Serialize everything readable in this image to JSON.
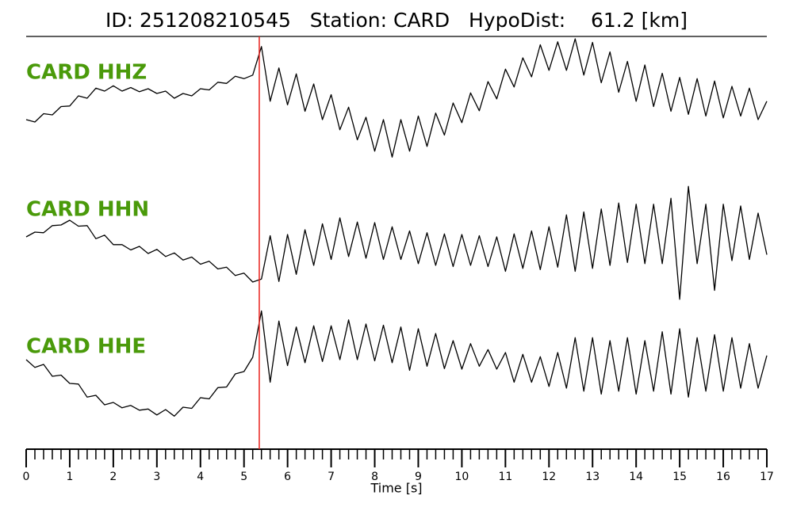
{
  "chart_data": {
    "type": "seismogram",
    "title": "ID: 251208210545   Station: CARD   HypoDist:    61.2 [km]",
    "xlabel": "Time [s]",
    "x": [
      0,
      0.2,
      0.4,
      0.6,
      0.8,
      1.0,
      1.2,
      1.4,
      1.6,
      1.8,
      2.0,
      2.2,
      2.4,
      2.6,
      2.8,
      3.0,
      3.2,
      3.4,
      3.6,
      3.8,
      4.0,
      4.2,
      4.4,
      4.6,
      4.8,
      5.0,
      5.2,
      5.4,
      5.6,
      5.8,
      6.0,
      6.2,
      6.4,
      6.6,
      6.8,
      7.0,
      7.2,
      7.4,
      7.6,
      7.8,
      8.0,
      8.2,
      8.4,
      8.6,
      8.8,
      9.0,
      9.2,
      9.4,
      9.6,
      9.8,
      10.0,
      10.2,
      10.4,
      10.6,
      10.8,
      11.0,
      11.2,
      11.4,
      11.6,
      11.8,
      12.0,
      12.2,
      12.4,
      12.6,
      12.8,
      13.0,
      13.2,
      13.4,
      13.6,
      13.8,
      14.0,
      14.2,
      14.4,
      14.6,
      14.8,
      15.0,
      15.2,
      15.4,
      15.6,
      15.8,
      16.0,
      16.2,
      16.4,
      16.6,
      16.8,
      17.0
    ],
    "xlim": [
      0,
      17
    ],
    "xticks": [
      0,
      1,
      2,
      3,
      4,
      5,
      6,
      7,
      8,
      9,
      10,
      11,
      12,
      13,
      14,
      15,
      16,
      17
    ],
    "minor_ticks_per_major": 5,
    "ylim": [
      -1,
      1
    ],
    "label_color": "#4a9a0a",
    "pick_time": 5.35,
    "pick_color": "#e8231e",
    "series": [
      {
        "name": "CARD HHZ",
        "color": "#000000",
        "values": [
          -0.28,
          -0.32,
          -0.18,
          -0.2,
          -0.06,
          -0.05,
          0.12,
          0.08,
          0.25,
          0.2,
          0.29,
          0.2,
          0.26,
          0.19,
          0.24,
          0.16,
          0.2,
          0.08,
          0.16,
          0.12,
          0.24,
          0.22,
          0.35,
          0.33,
          0.45,
          0.41,
          0.47,
          0.95,
          0.03,
          0.59,
          -0.03,
          0.49,
          -0.14,
          0.32,
          -0.28,
          0.14,
          -0.45,
          -0.07,
          -0.62,
          -0.24,
          -0.81,
          -0.28,
          -0.91,
          -0.28,
          -0.81,
          -0.22,
          -0.73,
          -0.17,
          -0.54,
          0.0,
          -0.33,
          0.17,
          -0.13,
          0.36,
          0.07,
          0.57,
          0.27,
          0.76,
          0.44,
          0.98,
          0.55,
          1.03,
          0.55,
          1.08,
          0.47,
          1.02,
          0.34,
          0.86,
          0.18,
          0.7,
          0.03,
          0.64,
          -0.06,
          0.5,
          -0.14,
          0.43,
          -0.19,
          0.41,
          -0.22,
          0.37,
          -0.25,
          0.28,
          -0.22,
          0.25,
          -0.28,
          0.03
        ]
      },
      {
        "name": "CARD HHN",
        "color": "#000000",
        "values": [
          0.08,
          0.16,
          0.15,
          0.27,
          0.28,
          0.36,
          0.26,
          0.27,
          0.05,
          0.11,
          -0.05,
          -0.05,
          -0.14,
          -0.08,
          -0.2,
          -0.13,
          -0.25,
          -0.19,
          -0.31,
          -0.26,
          -0.38,
          -0.33,
          -0.46,
          -0.43,
          -0.57,
          -0.53,
          -0.68,
          -0.63,
          0.1,
          -0.67,
          0.12,
          -0.55,
          0.2,
          -0.4,
          0.3,
          -0.3,
          0.4,
          -0.25,
          0.33,
          -0.28,
          0.32,
          -0.3,
          0.25,
          -0.3,
          0.18,
          -0.37,
          0.15,
          -0.4,
          0.13,
          -0.42,
          0.12,
          -0.4,
          0.1,
          -0.42,
          0.08,
          -0.5,
          0.13,
          -0.45,
          0.18,
          -0.47,
          0.25,
          -0.43,
          0.45,
          -0.5,
          0.5,
          -0.45,
          0.55,
          -0.4,
          0.65,
          -0.35,
          0.63,
          -0.37,
          0.63,
          -0.37,
          0.73,
          -0.97,
          0.93,
          -0.37,
          0.63,
          -0.82,
          0.63,
          -0.32,
          0.6,
          -0.3,
          0.48,
          -0.22
        ]
      },
      {
        "name": "CARD HHE",
        "color": "#000000",
        "values": [
          0.08,
          -0.05,
          0.0,
          -0.2,
          -0.18,
          -0.32,
          -0.33,
          -0.55,
          -0.52,
          -0.68,
          -0.64,
          -0.73,
          -0.69,
          -0.77,
          -0.75,
          -0.85,
          -0.76,
          -0.87,
          -0.72,
          -0.74,
          -0.56,
          -0.58,
          -0.39,
          -0.38,
          -0.16,
          -0.12,
          0.12,
          0.9,
          -0.3,
          0.73,
          -0.02,
          0.63,
          0.03,
          0.65,
          0.05,
          0.65,
          0.08,
          0.75,
          0.08,
          0.68,
          0.06,
          0.66,
          0.03,
          0.63,
          -0.1,
          0.6,
          -0.03,
          0.52,
          -0.07,
          0.4,
          -0.08,
          0.35,
          -0.03,
          0.25,
          -0.08,
          0.2,
          -0.3,
          0.17,
          -0.3,
          0.13,
          -0.37,
          0.2,
          -0.4,
          0.45,
          -0.45,
          0.45,
          -0.5,
          0.4,
          -0.45,
          0.45,
          -0.5,
          0.4,
          -0.45,
          0.55,
          -0.5,
          0.6,
          -0.55,
          0.45,
          -0.45,
          0.5,
          -0.45,
          0.45,
          -0.4,
          0.35,
          -0.4,
          0.15
        ]
      }
    ]
  }
}
